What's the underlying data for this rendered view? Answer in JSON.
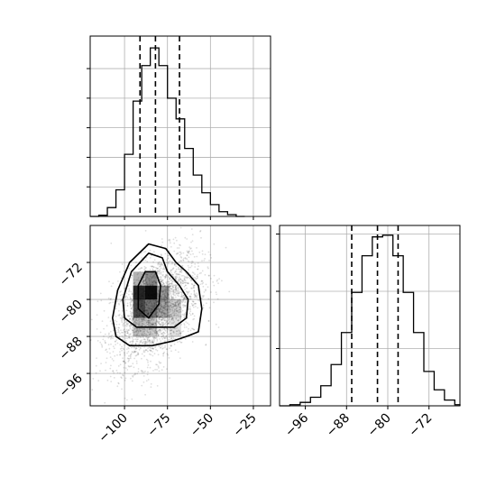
{
  "chart_data": [
    {
      "type": "histogram",
      "panel": "top-left",
      "parameter_index": 0,
      "xlim": [
        -120,
        -15
      ],
      "bins": [
        {
          "left": -120,
          "right": -115,
          "count": 0
        },
        {
          "left": -115,
          "right": -110,
          "count": 2
        },
        {
          "left": -110,
          "right": -105,
          "count": 15
        },
        {
          "left": -105,
          "right": -100,
          "count": 45
        },
        {
          "left": -100,
          "right": -95,
          "count": 105
        },
        {
          "left": -95,
          "right": -90,
          "count": 195
        },
        {
          "left": -90,
          "right": -85,
          "count": 255
        },
        {
          "left": -85,
          "right": -80,
          "count": 285
        },
        {
          "left": -80,
          "right": -75,
          "count": 255
        },
        {
          "left": -75,
          "right": -70,
          "count": 200
        },
        {
          "left": -70,
          "right": -65,
          "count": 165
        },
        {
          "left": -65,
          "right": -60,
          "count": 115
        },
        {
          "left": -60,
          "right": -55,
          "count": 70
        },
        {
          "left": -55,
          "right": -50,
          "count": 40
        },
        {
          "left": -50,
          "right": -45,
          "count": 20
        },
        {
          "left": -45,
          "right": -40,
          "count": 8
        },
        {
          "left": -40,
          "right": -35,
          "count": 3
        },
        {
          "left": -35,
          "right": -30,
          "count": 0
        }
      ],
      "ylim": [
        0,
        305
      ],
      "quantiles": [
        -91,
        -82,
        -68
      ],
      "xticks": [
        -100,
        -75,
        -50,
        -25
      ],
      "yticks": [
        50,
        100,
        150,
        200,
        250
      ],
      "grid": true
    },
    {
      "type": "scatter",
      "panel": "bottom-left",
      "x_parameter": 0,
      "y_parameter": 1,
      "xlim": [
        -120,
        -15
      ],
      "ylim": [
        -103,
        -64
      ],
      "xticks": [
        -100,
        -75,
        -50,
        -25
      ],
      "yticks": [
        -72,
        -80,
        -88,
        -96
      ],
      "xtick_labels": [
        "−100",
        "−75",
        "−50",
        "−25"
      ],
      "ytick_labels": [
        "−72",
        "−80",
        "−88",
        "−96"
      ],
      "center": {
        "x": -82,
        "y": -82
      },
      "contour_levels": [
        "inner",
        "middle",
        "outer"
      ],
      "grid": true
    },
    {
      "type": "histogram",
      "panel": "bottom-right",
      "parameter_index": 1,
      "xlim": [
        -101,
        -66
      ],
      "bins": [
        {
          "left": -101,
          "right": -99,
          "count": 0
        },
        {
          "left": -99,
          "right": -97,
          "count": 2
        },
        {
          "left": -97,
          "right": -95,
          "count": 6
        },
        {
          "left": -95,
          "right": -93,
          "count": 15
        },
        {
          "left": -93,
          "right": -91,
          "count": 35
        },
        {
          "left": -91,
          "right": -89,
          "count": 72
        },
        {
          "left": -89,
          "right": -87,
          "count": 128
        },
        {
          "left": -87,
          "right": -85,
          "count": 198
        },
        {
          "left": -85,
          "right": -83,
          "count": 262
        },
        {
          "left": -83,
          "right": -81,
          "count": 295
        },
        {
          "left": -81,
          "right": -79,
          "count": 298
        },
        {
          "left": -79,
          "right": -77,
          "count": 262
        },
        {
          "left": -77,
          "right": -75,
          "count": 198
        },
        {
          "left": -75,
          "right": -73,
          "count": 128
        },
        {
          "left": -73,
          "right": -71,
          "count": 60
        },
        {
          "left": -71,
          "right": -69,
          "count": 28
        },
        {
          "left": -69,
          "right": -67,
          "count": 10
        },
        {
          "left": -67,
          "right": -66,
          "count": 2
        }
      ],
      "ylim": [
        0,
        315
      ],
      "quantiles": [
        -87,
        -82,
        -78
      ],
      "xticks": [
        -96,
        -88,
        -80,
        -72
      ],
      "xtick_labels": [
        "−96",
        "−88",
        "−80",
        "−72"
      ],
      "yticks": [
        100,
        200,
        300
      ],
      "grid": true
    }
  ],
  "colors": {
    "ink": "#000000",
    "grid": "#b0b0b0",
    "background": "#ffffff"
  }
}
